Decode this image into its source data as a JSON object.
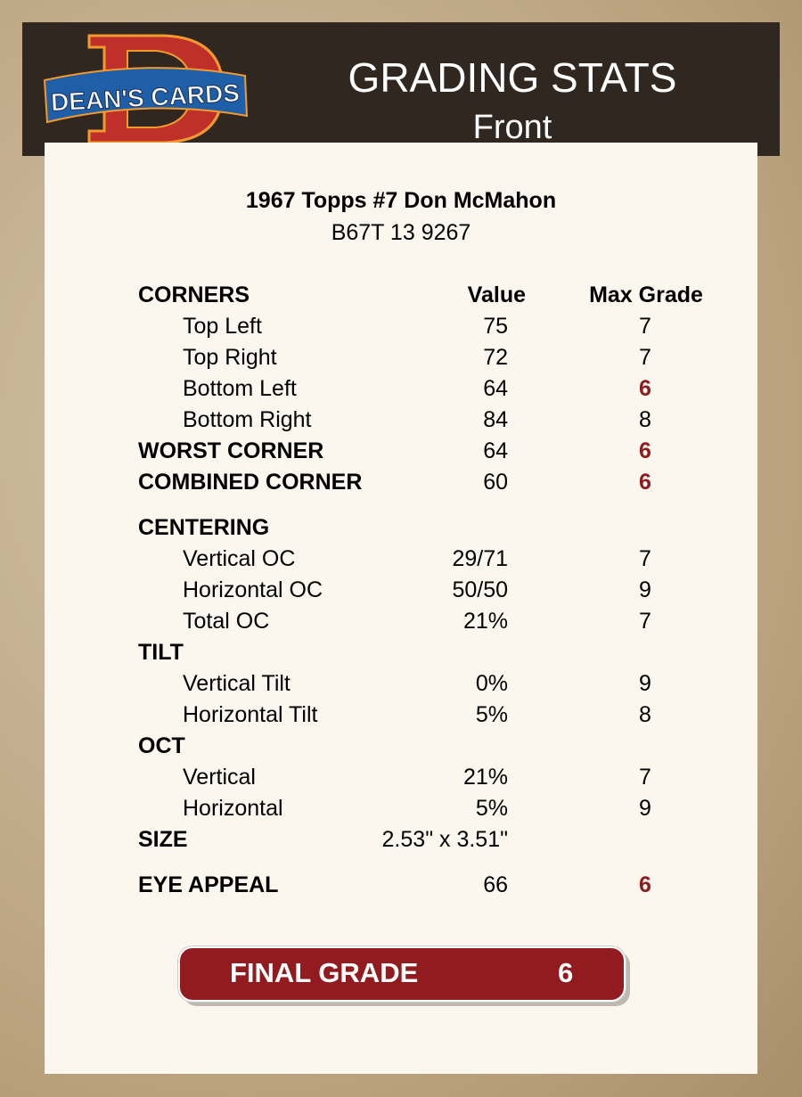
{
  "header": {
    "logo_text": "DEAN'S CARDS",
    "title": "GRADING STATS",
    "subtitle": "Front"
  },
  "card": {
    "title": "1967 Topps #7 Don McMahon",
    "id": "B67T 13 9267"
  },
  "columns": {
    "value": "Value",
    "max_grade": "Max Grade"
  },
  "rows": [
    {
      "label": "CORNERS",
      "type": "header"
    },
    {
      "label": "Top Left",
      "value": "75",
      "max_grade": "7"
    },
    {
      "label": "Top Right",
      "value": "72",
      "max_grade": "7"
    },
    {
      "label": "Bottom Left",
      "value": "64",
      "max_grade": "6",
      "low": true
    },
    {
      "label": "Bottom Right",
      "value": "84",
      "max_grade": "8"
    },
    {
      "label": "WORST CORNER",
      "value": "64",
      "max_grade": "6",
      "low": true,
      "bold": true
    },
    {
      "label": "COMBINED CORNER",
      "value": "60",
      "max_grade": "6",
      "low": true,
      "bold": true
    },
    {
      "label": "CENTERING",
      "bold": true,
      "gap": true
    },
    {
      "label": "Vertical OC",
      "value": "29/71",
      "max_grade": "7"
    },
    {
      "label": "Horizontal OC",
      "value": "50/50",
      "max_grade": "9"
    },
    {
      "label": "Total OC",
      "value": "21%",
      "max_grade": "7"
    },
    {
      "label": "TILT",
      "bold": true
    },
    {
      "label": "Vertical Tilt",
      "value": "0%",
      "max_grade": "9"
    },
    {
      "label": "Horizontal Tilt",
      "value": "5%",
      "max_grade": "8"
    },
    {
      "label": "OCT",
      "bold": true
    },
    {
      "label": "Vertical",
      "value": "21%",
      "max_grade": "7"
    },
    {
      "label": "Horizontal",
      "value": "5%",
      "max_grade": "9"
    },
    {
      "label": "SIZE",
      "value": "2.53\" x 3.51\"",
      "bold": true
    },
    {
      "label": "EYE APPEAL",
      "value": "66",
      "max_grade": "6",
      "low": true,
      "bold": true,
      "gap": true
    }
  ],
  "final": {
    "label": "FINAL GRADE",
    "value": "6"
  },
  "colors": {
    "header_bg": "#2f2720",
    "accent_red": "#911b1e",
    "card_bg": "#fcf7ee"
  }
}
